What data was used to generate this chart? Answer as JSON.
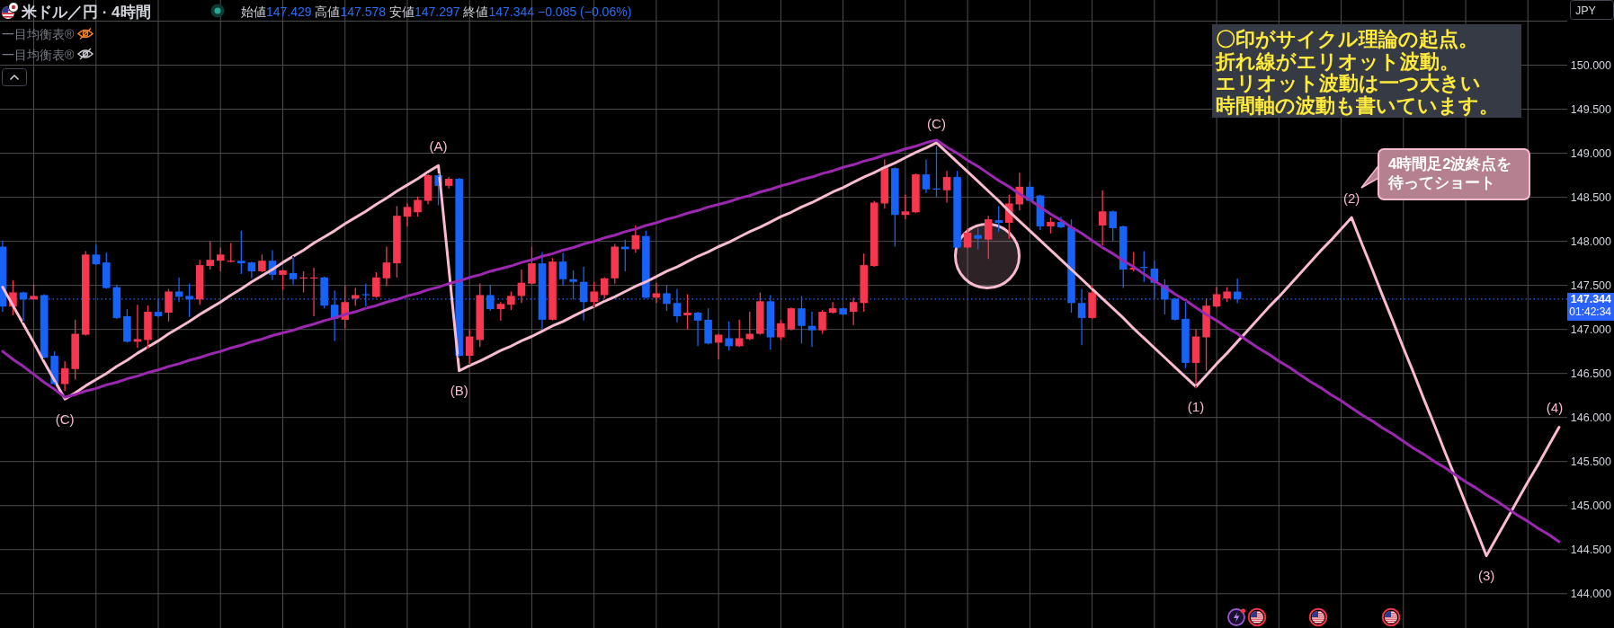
{
  "chart_data": {
    "type": "candlestick",
    "title": "米ドル／円 · 4時間",
    "subtitle": "始値147.429 高値147.578 安値147.297 終値147.344 −0.085 (−0.06%)",
    "ylabel": "JPY",
    "categories": [
      null,
      null,
      null,
      null,
      null,
      null,
      null,
      null,
      null,
      null,
      null,
      null,
      null,
      null,
      null,
      null,
      null,
      null,
      null,
      null,
      null,
      null,
      null,
      null,
      null,
      null,
      null,
      null,
      null,
      null,
      null,
      null,
      null,
      null,
      null,
      null,
      null,
      null,
      null,
      null,
      null,
      null,
      null,
      null,
      null,
      null,
      null,
      null,
      null,
      null,
      null,
      null,
      null,
      null,
      null,
      null,
      null,
      null,
      null,
      null,
      null,
      null,
      null,
      null,
      null,
      null,
      null,
      null,
      null,
      null,
      null,
      null,
      null,
      null,
      null,
      null,
      null,
      null,
      null,
      null,
      null,
      null,
      null,
      null,
      null,
      null,
      null,
      null,
      null,
      null,
      null,
      null,
      null,
      null,
      null,
      null,
      null,
      null,
      null,
      null,
      null,
      null,
      null,
      null,
      null,
      null,
      null,
      null,
      null,
      null,
      null,
      null,
      null,
      null,
      null,
      null,
      null,
      null,
      null,
      null,
      null,
      null,
      null,
      null,
      null,
      null,
      null,
      null,
      null,
      null,
      null,
      null,
      null,
      null,
      null,
      null,
      null,
      null,
      null,
      null,
      null,
      null,
      null,
      null,
      null,
      null,
      null,
      null,
      null,
      null,
      null
    ],
    "ylim": [
      143.61,
      150.74
    ],
    "yticks": [
      {
        "value": 150.5,
        "label": null
      },
      {
        "value": 150,
        "label": "150.000"
      },
      {
        "value": 149.5,
        "label": "149.500"
      },
      {
        "value": 149,
        "label": "149.000"
      },
      {
        "value": 148.5,
        "label": "148.500"
      },
      {
        "value": 148,
        "label": "148.000"
      },
      {
        "value": 147.5,
        "label": "147.500"
      },
      {
        "value": 147,
        "label": "147.000"
      },
      {
        "value": 146.5,
        "label": "146.500"
      },
      {
        "value": 146,
        "label": "146.000"
      },
      {
        "value": 145.5,
        "label": "145.500"
      },
      {
        "value": 145,
        "label": "145.000"
      },
      {
        "value": 144.5,
        "label": "144.500"
      },
      {
        "value": 144,
        "label": "144.000"
      }
    ],
    "tick_labels": "y",
    "grid": true,
    "ohlc": [
      [
        147.94,
        148.01,
        147.2,
        147.26
      ],
      [
        147.26,
        147.56,
        147.16,
        147.42
      ],
      [
        147.42,
        147.43,
        147.09,
        147.34
      ],
      [
        147.34,
        147.51,
        147.34,
        147.38
      ],
      [
        147.39,
        147.4,
        146.67,
        146.68
      ],
      [
        146.7,
        146.75,
        146.37,
        146.38
      ],
      [
        146.38,
        146.64,
        146.3,
        146.56
      ],
      [
        146.55,
        147.11,
        146.43,
        146.95
      ],
      [
        146.94,
        147.89,
        146.93,
        147.85
      ],
      [
        147.85,
        147.96,
        147.73,
        147.74
      ],
      [
        147.76,
        147.87,
        147.46,
        147.47
      ],
      [
        147.48,
        147.51,
        147.12,
        147.13
      ],
      [
        147.15,
        147.23,
        146.85,
        146.86
      ],
      [
        146.86,
        147.28,
        146.79,
        146.89
      ],
      [
        146.88,
        147.27,
        146.78,
        147.2
      ],
      [
        147.2,
        147.34,
        147.14,
        147.15
      ],
      [
        147.19,
        147.46,
        147.09,
        147.43
      ],
      [
        147.43,
        147.59,
        147.31,
        147.37
      ],
      [
        147.38,
        147.52,
        147.14,
        147.34
      ],
      [
        147.34,
        147.79,
        147.28,
        147.73
      ],
      [
        147.72,
        148.0,
        147.68,
        147.79
      ],
      [
        147.78,
        147.93,
        147.66,
        147.85
      ],
      [
        147.77,
        147.98,
        147.76,
        147.78
      ],
      [
        147.78,
        148.12,
        147.63,
        147.75
      ],
      [
        147.76,
        147.77,
        147.58,
        147.66
      ],
      [
        147.66,
        147.85,
        147.65,
        147.78
      ],
      [
        147.78,
        147.9,
        147.56,
        147.62
      ],
      [
        147.62,
        147.68,
        147.45,
        147.67
      ],
      [
        147.64,
        147.82,
        147.51,
        147.57
      ],
      [
        147.58,
        147.66,
        147.42,
        147.59
      ],
      [
        147.58,
        147.7,
        147.15,
        147.59
      ],
      [
        147.59,
        147.6,
        147.24,
        147.27
      ],
      [
        147.28,
        147.44,
        146.87,
        147.12
      ],
      [
        147.11,
        147.5,
        147.01,
        147.31
      ],
      [
        147.35,
        147.47,
        147.27,
        147.39
      ],
      [
        147.4,
        147.52,
        147.26,
        147.39
      ],
      [
        147.37,
        147.65,
        147.36,
        147.59
      ],
      [
        147.58,
        147.94,
        147.49,
        147.76
      ],
      [
        147.75,
        148.4,
        147.59,
        148.29
      ],
      [
        148.28,
        148.43,
        148.17,
        148.39
      ],
      [
        148.33,
        148.51,
        148.28,
        148.47
      ],
      [
        148.46,
        148.76,
        148.42,
        148.75
      ],
      [
        148.75,
        148.76,
        148.41,
        148.63
      ],
      [
        148.63,
        148.73,
        148.6,
        148.71
      ],
      [
        148.71,
        148.72,
        146.69,
        146.7
      ],
      [
        146.7,
        147.0,
        146.61,
        146.92
      ],
      [
        146.88,
        147.52,
        146.8,
        147.39
      ],
      [
        147.39,
        147.51,
        147.21,
        147.23
      ],
      [
        147.23,
        147.31,
        147.1,
        147.29
      ],
      [
        147.28,
        147.43,
        147.22,
        147.38
      ],
      [
        147.38,
        147.68,
        147.3,
        147.53
      ],
      [
        147.52,
        147.94,
        147.51,
        147.75
      ],
      [
        147.75,
        147.88,
        147.01,
        147.11
      ],
      [
        147.11,
        147.81,
        147.1,
        147.77
      ],
      [
        147.77,
        147.87,
        147.5,
        147.57
      ],
      [
        147.57,
        147.67,
        147.34,
        147.54
      ],
      [
        147.54,
        147.71,
        147.1,
        147.31
      ],
      [
        147.31,
        147.54,
        147.26,
        147.43
      ],
      [
        147.39,
        147.59,
        147.35,
        147.58
      ],
      [
        147.58,
        147.97,
        147.52,
        147.94
      ],
      [
        147.94,
        148.02,
        147.66,
        147.91
      ],
      [
        147.91,
        148.18,
        147.87,
        148.07
      ],
      [
        148.06,
        148.12,
        147.35,
        147.36
      ],
      [
        147.36,
        147.53,
        147.3,
        147.41
      ],
      [
        147.41,
        147.5,
        147.21,
        147.29
      ],
      [
        147.3,
        147.46,
        147.08,
        147.15
      ],
      [
        147.16,
        147.4,
        147.0,
        147.19
      ],
      [
        147.19,
        147.2,
        146.81,
        147.1
      ],
      [
        147.11,
        147.24,
        146.83,
        146.84
      ],
      [
        146.85,
        146.95,
        146.66,
        146.94
      ],
      [
        146.9,
        147.09,
        146.76,
        146.81
      ],
      [
        146.81,
        147.11,
        146.8,
        146.9
      ],
      [
        146.89,
        147.2,
        146.88,
        146.95
      ],
      [
        146.95,
        147.42,
        146.94,
        147.32
      ],
      [
        147.32,
        147.39,
        146.77,
        146.91
      ],
      [
        146.91,
        147.11,
        146.88,
        147.07
      ],
      [
        147.0,
        147.25,
        146.99,
        147.24
      ],
      [
        147.24,
        147.38,
        146.84,
        147.04
      ],
      [
        147.04,
        147.2,
        146.8,
        146.99
      ],
      [
        146.99,
        147.22,
        146.95,
        147.2
      ],
      [
        147.19,
        147.31,
        147.18,
        147.24
      ],
      [
        147.24,
        147.25,
        147.16,
        147.17
      ],
      [
        147.2,
        147.36,
        147.05,
        147.31
      ],
      [
        147.3,
        147.86,
        147.2,
        147.73
      ],
      [
        147.72,
        148.46,
        147.71,
        148.44
      ],
      [
        148.43,
        148.93,
        148.37,
        148.84
      ],
      [
        148.83,
        148.84,
        147.94,
        148.3
      ],
      [
        148.3,
        148.53,
        148.25,
        148.34
      ],
      [
        148.33,
        148.77,
        148.32,
        148.76
      ],
      [
        148.76,
        148.93,
        148.55,
        148.59
      ],
      [
        148.6,
        149.08,
        148.5,
        148.59
      ],
      [
        148.58,
        148.8,
        148.44,
        148.73
      ],
      [
        148.73,
        148.8,
        147.92,
        147.93
      ],
      [
        147.93,
        148.15,
        147.92,
        148.1
      ],
      [
        148.07,
        148.15,
        147.91,
        148.03
      ],
      [
        148.02,
        148.29,
        147.8,
        148.25
      ],
      [
        148.24,
        148.4,
        148.11,
        148.21
      ],
      [
        148.21,
        148.53,
        148.03,
        148.43
      ],
      [
        148.42,
        148.78,
        148.35,
        148.62
      ],
      [
        148.62,
        148.68,
        148.45,
        148.46
      ],
      [
        148.52,
        148.53,
        148.13,
        148.17
      ],
      [
        148.17,
        148.27,
        148.09,
        148.22
      ],
      [
        148.22,
        148.28,
        148.15,
        148.16
      ],
      [
        148.16,
        148.25,
        147.19,
        147.3
      ],
      [
        147.3,
        147.46,
        146.82,
        147.13
      ],
      [
        147.13,
        147.5,
        147.12,
        147.42
      ],
      [
        148.18,
        148.58,
        147.95,
        148.34
      ],
      [
        148.34,
        148.35,
        148.0,
        148.15
      ],
      [
        148.17,
        148.18,
        147.47,
        147.68
      ],
      [
        147.68,
        147.88,
        147.66,
        147.7
      ],
      [
        147.71,
        147.89,
        147.54,
        147.7
      ],
      [
        147.69,
        147.78,
        147.34,
        147.53
      ],
      [
        147.5,
        147.57,
        147.17,
        147.34
      ],
      [
        147.35,
        147.36,
        147.1,
        147.11
      ],
      [
        147.12,
        147.31,
        146.56,
        146.62
      ],
      [
        146.62,
        147.0,
        146.33,
        146.92
      ],
      [
        146.91,
        147.35,
        146.53,
        147.27
      ],
      [
        147.26,
        147.48,
        147.25,
        147.4
      ],
      [
        147.35,
        147.48,
        147.31,
        147.43
      ],
      [
        147.429,
        147.578,
        147.297,
        147.344
      ],
      null,
      null,
      null,
      null,
      null,
      null,
      null,
      null,
      null,
      null,
      null,
      null,
      null,
      null,
      null,
      null,
      null,
      null,
      null,
      null,
      null,
      null,
      null,
      null,
      null,
      null,
      null,
      null,
      null,
      null,
      null
    ],
    "colors": [
      "#1763f7",
      "#f7374f",
      "#1763f7",
      "#f7374f",
      "#1763f7",
      "#1763f7",
      "#f7374f",
      "#f7374f",
      "#f7374f",
      "#1763f7",
      "#1763f7",
      "#1763f7",
      "#1763f7",
      "#f7374f",
      "#f7374f",
      "#1763f7",
      "#f7374f",
      "#1763f7",
      "#1763f7",
      "#f7374f",
      "#f7374f",
      "#f7374f",
      "#f7374f",
      "#1763f7",
      "#1763f7",
      "#f7374f",
      "#1763f7",
      "#f7374f",
      "#1763f7",
      "#f7374f",
      "#f7374f",
      "#1763f7",
      "#1763f7",
      "#f7374f",
      "#f7374f",
      "#1763f7",
      "#f7374f",
      "#f7374f",
      "#f7374f",
      "#f7374f",
      "#f7374f",
      "#f7374f",
      "#1763f7",
      "#f7374f",
      "#1763f7",
      "#f7374f",
      "#f7374f",
      "#1763f7",
      "#f7374f",
      "#f7374f",
      "#f7374f",
      "#f7374f",
      "#1763f7",
      "#f7374f",
      "#1763f7",
      "#1763f7",
      "#1763f7",
      "#f7374f",
      "#f7374f",
      "#f7374f",
      "#1763f7",
      "#f7374f",
      "#1763f7",
      "#f7374f",
      "#1763f7",
      "#1763f7",
      "#f7374f",
      "#1763f7",
      "#1763f7",
      "#f7374f",
      "#1763f7",
      "#f7374f",
      "#f7374f",
      "#f7374f",
      "#1763f7",
      "#f7374f",
      "#f7374f",
      "#1763f7",
      "#1763f7",
      "#f7374f",
      "#f7374f",
      "#1763f7",
      "#f7374f",
      "#f7374f",
      "#f7374f",
      "#f7374f",
      "#1763f7",
      "#f7374f",
      "#f7374f",
      "#1763f7",
      "#1763f7",
      "#f7374f",
      "#1763f7",
      "#f7374f",
      "#1763f7",
      "#f7374f",
      "#1763f7",
      "#f7374f",
      "#f7374f",
      "#1763f7",
      "#1763f7",
      "#f7374f",
      "#1763f7",
      "#1763f7",
      "#1763f7",
      "#f7374f",
      "#f7374f",
      "#1763f7",
      "#1763f7",
      "#f7374f",
      "#1763f7",
      "#1763f7",
      "#1763f7",
      "#1763f7",
      "#1763f7",
      "#f7374f",
      "#f7374f",
      "#f7374f",
      "#f7374f",
      "#1763f7",
      null,
      null,
      null,
      null,
      null,
      null,
      null,
      null,
      null,
      null,
      null,
      null,
      null,
      null,
      null,
      null,
      null,
      null,
      null,
      null,
      null,
      null,
      null,
      null,
      null,
      null,
      null,
      null,
      null,
      null,
      null
    ],
    "series": [
      {
        "type": "line",
        "color": "#f8bbd0",
        "values": [
          147.48,
          147.27,
          147.06,
          146.85,
          146.63,
          146.42,
          146.21,
          146.28,
          146.36,
          146.43,
          146.5,
          146.58,
          146.65,
          146.73,
          146.8,
          146.87,
          146.95,
          147.02,
          147.09,
          147.17,
          147.24,
          147.31,
          147.39,
          147.46,
          147.54,
          147.61,
          147.68,
          147.76,
          147.83,
          147.9,
          147.98,
          148.05,
          148.12,
          148.2,
          148.27,
          148.34,
          148.42,
          148.49,
          148.57,
          148.64,
          148.71,
          148.79,
          148.86,
          147.7,
          146.53,
          146.59,
          146.64,
          146.7,
          146.76,
          146.81,
          146.87,
          146.92,
          146.98,
          147.04,
          147.09,
          147.15,
          147.21,
          147.26,
          147.32,
          147.37,
          147.43,
          147.49,
          147.54,
          147.6,
          147.66,
          147.71,
          147.77,
          147.83,
          147.88,
          147.94,
          147.99,
          148.05,
          148.11,
          148.16,
          148.22,
          148.28,
          148.33,
          148.39,
          148.44,
          148.5,
          148.56,
          148.61,
          148.67,
          148.73,
          148.78,
          148.84,
          148.89,
          148.95,
          149.01,
          149.06,
          149.12,
          149.01,
          148.9,
          148.79,
          148.68,
          148.57,
          148.46,
          148.34,
          148.23,
          148.12,
          148.01,
          147.9,
          147.79,
          147.68,
          147.57,
          147.46,
          147.35,
          147.24,
          147.13,
          147.01,
          146.9,
          146.79,
          146.68,
          146.57,
          146.46,
          146.35,
          146.48,
          146.61,
          146.73,
          146.86,
          146.99,
          147.12,
          147.25,
          147.37,
          147.5,
          147.63,
          147.76,
          147.89,
          148.01,
          148.14,
          148.27,
          147.97,
          147.68,
          147.38,
          147.09,
          146.79,
          146.5,
          146.2,
          145.91,
          145.61,
          145.32,
          145.02,
          144.73,
          144.43,
          144.64,
          144.85,
          145.06,
          145.27,
          145.47,
          145.68,
          145.89
        ]
      },
      {
        "type": "line",
        "color": "#9c27b0",
        "values": [
          146.75,
          146.66,
          146.58,
          146.49,
          146.4,
          146.32,
          146.23,
          146.26,
          146.3,
          146.33,
          146.37,
          146.4,
          146.44,
          146.47,
          146.51,
          146.54,
          146.58,
          146.61,
          146.65,
          146.68,
          146.72,
          146.75,
          146.79,
          146.82,
          146.86,
          146.89,
          146.93,
          146.96,
          146.99,
          147.03,
          147.06,
          147.1,
          147.13,
          147.17,
          147.2,
          147.24,
          147.27,
          147.31,
          147.34,
          147.38,
          147.41,
          147.45,
          147.48,
          147.52,
          147.55,
          147.59,
          147.62,
          147.66,
          147.69,
          147.72,
          147.76,
          147.79,
          147.83,
          147.86,
          147.9,
          147.93,
          147.97,
          148.0,
          148.04,
          148.07,
          148.11,
          148.14,
          148.18,
          148.21,
          148.25,
          148.28,
          148.32,
          148.35,
          148.39,
          148.42,
          148.45,
          148.49,
          148.52,
          148.56,
          148.59,
          148.63,
          148.66,
          148.7,
          148.73,
          148.77,
          148.8,
          148.84,
          148.87,
          148.91,
          148.94,
          148.98,
          149.01,
          149.05,
          149.08,
          149.12,
          149.15,
          149.07,
          149.0,
          148.92,
          148.85,
          148.77,
          148.69,
          148.62,
          148.54,
          148.47,
          148.39,
          148.31,
          148.24,
          148.16,
          148.09,
          148.01,
          147.93,
          147.86,
          147.78,
          147.71,
          147.63,
          147.55,
          147.48,
          147.4,
          147.33,
          147.25,
          147.17,
          147.1,
          147.02,
          146.95,
          146.87,
          146.79,
          146.72,
          146.64,
          146.57,
          146.49,
          146.41,
          146.34,
          146.26,
          146.19,
          146.11,
          146.03,
          145.96,
          145.88,
          145.81,
          145.73,
          145.65,
          145.58,
          145.5,
          145.43,
          145.35,
          145.27,
          145.2,
          145.12,
          145.05,
          144.97,
          144.89,
          144.82,
          144.74,
          144.67,
          144.59
        ]
      }
    ],
    "ref_lines": [
      {
        "axis": "y",
        "value": 147.344,
        "label": "147.344",
        "color": "#2962ff",
        "line_style": "dotted"
      }
    ],
    "annotations": [
      "〇印がサイクル理論の起点。折れ線がエリオット波動。エリオット波動は一つ大きい時間軸の波動も書いています。",
      "一目均衡表®",
      "一目均衡表®",
      "01:42:34",
      "4時間足2波終点を待ってショート",
      "(C)",
      "(A)",
      "(B)",
      "(C)",
      "(1)",
      "(2)",
      "(3)",
      "(4)"
    ]
  }
}
